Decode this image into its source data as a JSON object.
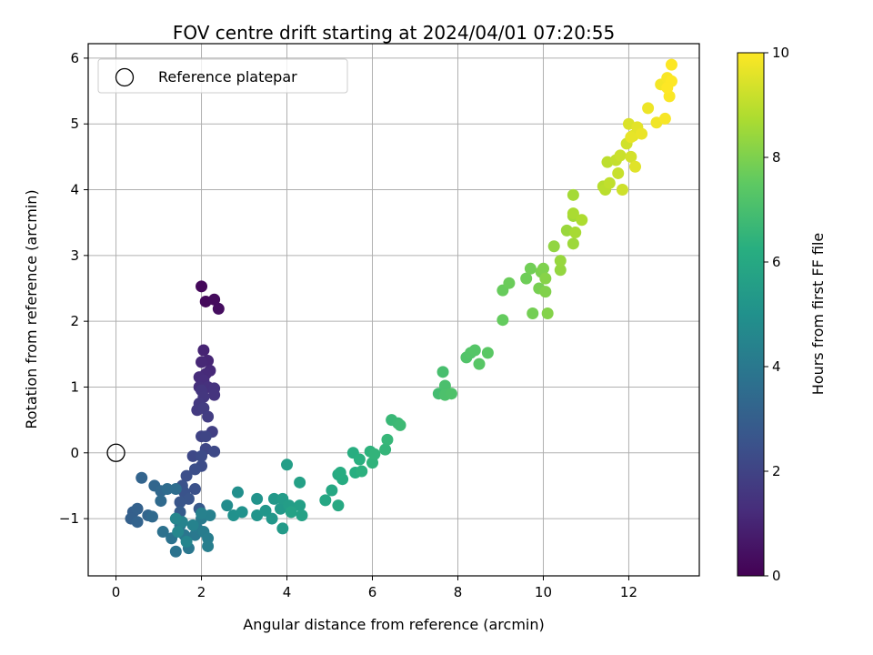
{
  "chart_data": {
    "type": "scatter",
    "title": "FOV centre drift starting at 2024/04/01 07:20:55",
    "xlabel": "Angular distance from reference (arcmin)",
    "ylabel": "Rotation from reference (arcmin)",
    "xlim": [
      -0.65,
      13.65
    ],
    "ylim": [
      -1.87,
      6.22
    ],
    "xticks": [
      0,
      2,
      4,
      6,
      8,
      10,
      12
    ],
    "yticks": [
      -1,
      0,
      1,
      2,
      3,
      4,
      5,
      6
    ],
    "grid": true,
    "legend": {
      "label": "Reference platepar",
      "placement": "top-left"
    },
    "reference_point": [
      0,
      0
    ],
    "colorbar": {
      "label": "Hours from first FF file",
      "min": 0,
      "max": 10,
      "ticks": [
        0,
        2,
        4,
        6,
        8,
        10
      ],
      "colormap": "viridis"
    },
    "points": [
      [
        2.0,
        2.53,
        0.2
      ],
      [
        2.1,
        2.3,
        0.25
      ],
      [
        2.3,
        2.33,
        0.3
      ],
      [
        2.4,
        2.19,
        0.35
      ],
      [
        2.05,
        1.56,
        1.0
      ],
      [
        2.15,
        1.4,
        1.05
      ],
      [
        2.0,
        1.38,
        1.1
      ],
      [
        2.2,
        1.25,
        1.15
      ],
      [
        2.1,
        1.2,
        1.2
      ],
      [
        1.95,
        1.15,
        1.25
      ],
      [
        2.05,
        1.1,
        1.3
      ],
      [
        1.95,
        1.0,
        1.35
      ],
      [
        2.15,
        1.0,
        1.4
      ],
      [
        2.3,
        0.98,
        1.45
      ],
      [
        2.3,
        0.88,
        1.5
      ],
      [
        2.0,
        0.95,
        1.55
      ],
      [
        2.05,
        0.85,
        1.6
      ],
      [
        1.95,
        0.75,
        1.65
      ],
      [
        1.9,
        0.65,
        1.7
      ],
      [
        2.05,
        0.68,
        1.75
      ],
      [
        2.15,
        0.55,
        1.8
      ],
      [
        2.25,
        0.32,
        1.85
      ],
      [
        2.0,
        0.25,
        2.0
      ],
      [
        2.1,
        0.25,
        2.05
      ],
      [
        2.1,
        0.06,
        2.1
      ],
      [
        1.8,
        -0.05,
        2.15
      ],
      [
        2.3,
        0.02,
        2.2
      ],
      [
        2.0,
        -0.05,
        2.25
      ],
      [
        2.0,
        -0.2,
        2.3
      ],
      [
        1.85,
        -0.25,
        2.35
      ],
      [
        1.65,
        -0.35,
        2.4
      ],
      [
        1.85,
        -0.55,
        2.45
      ],
      [
        1.55,
        -0.5,
        2.5
      ],
      [
        1.6,
        -0.6,
        2.55
      ],
      [
        1.7,
        -0.7,
        2.6
      ],
      [
        1.5,
        -0.75,
        2.65
      ],
      [
        1.95,
        -0.85,
        2.8
      ],
      [
        1.5,
        -0.9,
        2.9
      ],
      [
        0.4,
        -0.9,
        3.0
      ],
      [
        0.35,
        -1.0,
        3.05
      ],
      [
        0.5,
        -0.85,
        3.1
      ],
      [
        0.5,
        -1.05,
        3.15
      ],
      [
        0.6,
        -0.38,
        3.2
      ],
      [
        0.75,
        -0.95,
        3.25
      ],
      [
        0.9,
        -0.5,
        3.3
      ],
      [
        1.05,
        -0.58,
        3.35
      ],
      [
        0.85,
        -0.97,
        3.4
      ],
      [
        1.05,
        -0.73,
        3.45
      ],
      [
        1.2,
        -0.55,
        3.5
      ],
      [
        1.4,
        -0.55,
        3.55
      ],
      [
        1.1,
        -1.2,
        3.7
      ],
      [
        1.3,
        -1.3,
        3.75
      ],
      [
        1.4,
        -1.5,
        3.8
      ],
      [
        1.5,
        -1.1,
        3.85
      ],
      [
        1.6,
        -1.25,
        3.9
      ],
      [
        1.7,
        -1.45,
        3.95
      ],
      [
        1.85,
        -1.25,
        4.0
      ],
      [
        1.9,
        -1.15,
        4.05
      ],
      [
        2.0,
        -1.0,
        4.1
      ],
      [
        2.05,
        -1.2,
        4.15
      ],
      [
        2.15,
        -1.3,
        4.2
      ],
      [
        2.15,
        -1.42,
        4.25
      ],
      [
        2.2,
        -0.95,
        4.3
      ],
      [
        2.0,
        -0.92,
        4.35
      ],
      [
        1.8,
        -1.1,
        4.4
      ],
      [
        1.55,
        -1.05,
        4.45
      ],
      [
        1.65,
        -1.35,
        4.5
      ],
      [
        1.4,
        -1.0,
        4.55
      ],
      [
        1.45,
        -1.2,
        4.6
      ],
      [
        2.6,
        -0.8,
        4.8
      ],
      [
        2.85,
        -0.6,
        4.9
      ],
      [
        2.75,
        -0.95,
        5.0
      ],
      [
        2.95,
        -0.9,
        5.05
      ],
      [
        3.3,
        -0.7,
        5.1
      ],
      [
        3.3,
        -0.95,
        5.15
      ],
      [
        3.5,
        -0.88,
        5.2
      ],
      [
        3.65,
        -1.0,
        5.25
      ],
      [
        3.7,
        -0.7,
        5.3
      ],
      [
        3.85,
        -0.85,
        5.35
      ],
      [
        3.9,
        -1.15,
        5.4
      ],
      [
        3.9,
        -0.7,
        5.45
      ],
      [
        4.05,
        -0.8,
        5.5
      ],
      [
        4.0,
        -0.18,
        5.55
      ],
      [
        4.3,
        -0.8,
        5.6
      ],
      [
        4.3,
        -0.45,
        5.65
      ],
      [
        4.35,
        -0.95,
        5.7
      ],
      [
        4.1,
        -0.9,
        5.75
      ],
      [
        4.9,
        -0.72,
        5.9
      ],
      [
        5.05,
        -0.57,
        5.95
      ],
      [
        5.2,
        -0.8,
        6.0
      ],
      [
        5.2,
        -0.33,
        6.05
      ],
      [
        5.3,
        -0.4,
        6.1
      ],
      [
        5.25,
        -0.3,
        6.15
      ],
      [
        5.55,
        0.0,
        6.2
      ],
      [
        5.6,
        -0.3,
        6.25
      ],
      [
        5.7,
        -0.1,
        6.3
      ],
      [
        5.75,
        -0.28,
        6.35
      ],
      [
        5.95,
        0.02,
        6.4
      ],
      [
        6.0,
        -0.15,
        6.45
      ],
      [
        6.05,
        -0.02,
        6.5
      ],
      [
        6.3,
        0.05,
        6.55
      ],
      [
        6.35,
        0.2,
        6.6
      ],
      [
        6.45,
        0.5,
        6.65
      ],
      [
        6.6,
        0.45,
        6.7
      ],
      [
        6.65,
        0.42,
        6.75
      ],
      [
        7.55,
        0.9,
        6.9
      ],
      [
        7.65,
        1.23,
        7.0
      ],
      [
        7.7,
        1.02,
        7.05
      ],
      [
        7.7,
        0.88,
        7.1
      ],
      [
        7.85,
        0.9,
        7.15
      ],
      [
        8.2,
        1.45,
        7.2
      ],
      [
        8.3,
        1.52,
        7.25
      ],
      [
        8.4,
        1.56,
        7.3
      ],
      [
        8.5,
        1.35,
        7.35
      ],
      [
        8.7,
        1.52,
        7.4
      ],
      [
        9.05,
        2.02,
        7.6
      ],
      [
        9.05,
        2.47,
        7.65
      ],
      [
        9.2,
        2.58,
        7.7
      ],
      [
        9.6,
        2.65,
        7.75
      ],
      [
        9.7,
        2.8,
        7.8
      ],
      [
        9.75,
        2.12,
        7.85
      ],
      [
        9.9,
        2.5,
        7.9
      ],
      [
        9.95,
        2.75,
        7.95
      ],
      [
        10.0,
        2.8,
        8.0
      ],
      [
        10.05,
        2.45,
        8.05
      ],
      [
        10.1,
        2.12,
        8.1
      ],
      [
        10.05,
        2.65,
        8.15
      ],
      [
        10.25,
        3.14,
        8.3
      ],
      [
        10.4,
        2.78,
        8.35
      ],
      [
        10.4,
        2.92,
        8.4
      ],
      [
        10.55,
        3.38,
        8.45
      ],
      [
        10.7,
        3.18,
        8.5
      ],
      [
        10.7,
        3.6,
        8.55
      ],
      [
        10.7,
        3.92,
        8.6
      ],
      [
        10.75,
        3.35,
        8.65
      ],
      [
        10.7,
        3.64,
        8.7
      ],
      [
        10.9,
        3.54,
        8.75
      ],
      [
        11.4,
        4.05,
        8.9
      ],
      [
        11.45,
        4.0,
        8.95
      ],
      [
        11.5,
        4.42,
        9.0
      ],
      [
        11.55,
        4.1,
        9.05
      ],
      [
        11.7,
        4.45,
        9.1
      ],
      [
        11.75,
        4.25,
        9.15
      ],
      [
        11.8,
        4.52,
        9.2
      ],
      [
        11.85,
        4.0,
        9.25
      ],
      [
        11.95,
        4.7,
        9.3
      ],
      [
        12.05,
        4.5,
        9.35
      ],
      [
        12.0,
        5.0,
        9.45
      ],
      [
        12.1,
        4.82,
        9.5
      ],
      [
        12.15,
        4.35,
        9.55
      ],
      [
        12.2,
        4.95,
        9.6
      ],
      [
        12.05,
        4.8,
        9.65
      ],
      [
        12.3,
        4.85,
        9.7
      ],
      [
        12.45,
        5.24,
        9.75
      ],
      [
        12.65,
        5.02,
        9.8
      ],
      [
        12.75,
        5.6,
        9.85
      ],
      [
        12.85,
        5.08,
        9.9
      ],
      [
        12.9,
        5.7,
        9.92
      ],
      [
        12.95,
        5.42,
        9.95
      ],
      [
        13.0,
        5.9,
        9.98
      ],
      [
        13.0,
        5.65,
        10.0
      ],
      [
        12.9,
        5.55,
        10.0
      ]
    ]
  }
}
